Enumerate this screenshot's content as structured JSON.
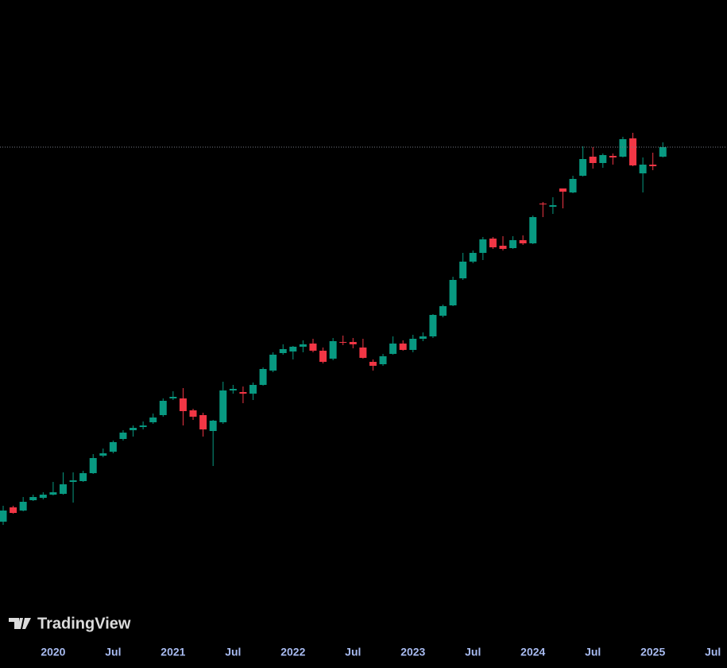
{
  "chart_data": {
    "type": "candlestick",
    "categories": [
      null,
      null,
      null,
      null,
      null,
      "2020",
      null,
      null,
      null,
      null,
      null,
      "Jul",
      null,
      null,
      null,
      null,
      null,
      "2021",
      null,
      null,
      null,
      null,
      null,
      "Jul",
      null,
      null,
      null,
      null,
      null,
      "2022",
      null,
      null,
      null,
      null,
      null,
      "Jul",
      null,
      null,
      null,
      null,
      null,
      "2023",
      null,
      null,
      null,
      null,
      null,
      "Jul",
      null,
      null,
      null,
      null,
      null,
      "2024",
      null,
      null,
      null,
      null,
      null,
      "Jul",
      null,
      null,
      null,
      null,
      null,
      "2025",
      null,
      null,
      null,
      null,
      null,
      "Jul"
    ],
    "open": [
      44,
      62,
      58,
      71,
      74,
      78,
      79,
      94,
      95,
      105,
      127,
      132,
      148,
      159,
      163,
      169,
      178,
      199,
      199,
      184,
      178,
      158,
      169,
      209,
      207,
      205,
      216,
      234,
      256,
      258,
      264,
      268,
      259,
      249,
      270,
      270,
      263,
      245,
      242,
      255,
      268,
      260,
      274,
      277,
      303,
      316,
      350,
      371,
      382,
      400,
      391,
      388,
      398,
      394,
      444,
      440,
      463,
      458,
      479,
      503,
      495,
      504,
      503,
      526,
      482,
      493,
      503,
      null,
      null,
      null,
      null,
      null
    ],
    "high": [
      64,
      64,
      75,
      78,
      81,
      94,
      106,
      106,
      108,
      129,
      136,
      146,
      159,
      165,
      170,
      180,
      199,
      208,
      212,
      186,
      181,
      172,
      220,
      216,
      214,
      219,
      238,
      257,
      267,
      265,
      272,
      274,
      263,
      275,
      278,
      275,
      274,
      248,
      255,
      277,
      272,
      279,
      282,
      305,
      317,
      352,
      382,
      385,
      402,
      402,
      403,
      403,
      404,
      429,
      446,
      452,
      462,
      479,
      516,
      515,
      507,
      507,
      528,
      533,
      502,
      508,
      521,
      null,
      null,
      null,
      null,
      null
    ],
    "low": [
      40,
      54,
      57,
      70,
      72,
      77,
      78,
      68,
      94,
      104,
      125,
      130,
      146,
      151,
      160,
      167,
      176,
      197,
      165,
      172,
      151,
      114,
      167,
      205,
      193,
      197,
      215,
      232,
      254,
      248,
      257,
      257,
      243,
      247,
      266,
      262,
      249,
      234,
      240,
      254,
      259,
      257,
      271,
      275,
      301,
      315,
      348,
      369,
      373,
      387,
      385,
      387,
      392,
      393,
      427,
      431,
      438,
      457,
      478,
      488,
      489,
      493,
      502,
      491,
      458,
      486,
      502,
      null,
      null,
      null,
      null,
      null
    ],
    "close": [
      58,
      55,
      69,
      75,
      78,
      81,
      91,
      96,
      105,
      124,
      130,
      144,
      156,
      162,
      165,
      175,
      196,
      201,
      183,
      176,
      160,
      171,
      209,
      211,
      205,
      216,
      236,
      254,
      261,
      264,
      267,
      259,
      245,
      271,
      269,
      267,
      250,
      240,
      252,
      268,
      260,
      274,
      277,
      304,
      315,
      348,
      371,
      382,
      399,
      389,
      387,
      398,
      394,
      427,
      443,
      442,
      459,
      475,
      500,
      495,
      505,
      502,
      525,
      492,
      493,
      491,
      515,
      null,
      null,
      null,
      null,
      null
    ],
    "up_color": "#089981",
    "down_color": "#f23645",
    "ylim": [
      0,
      700
    ],
    "price_line": true,
    "watermark": "TradingView"
  }
}
